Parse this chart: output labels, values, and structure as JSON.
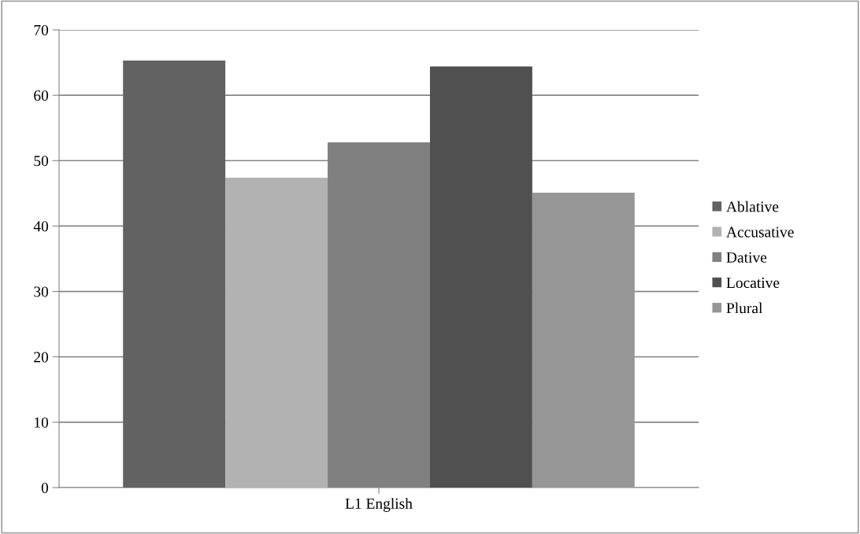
{
  "chart_data": {
    "type": "bar",
    "categories": [
      "L1 English"
    ],
    "series": [
      {
        "name": "Ablative",
        "color": "#626262",
        "values": [
          65.3
        ]
      },
      {
        "name": "Accusative",
        "color": "#b2b2b2",
        "values": [
          47.4
        ]
      },
      {
        "name": "Dative",
        "color": "#808080",
        "values": [
          52.8
        ]
      },
      {
        "name": "Locative",
        "color": "#505050",
        "values": [
          64.4
        ]
      },
      {
        "name": "Plural",
        "color": "#969696",
        "values": [
          45.1
        ]
      }
    ],
    "ylim": [
      0,
      70
    ],
    "yticks": [
      0,
      10,
      20,
      30,
      40,
      50,
      60,
      70
    ],
    "grid": "y",
    "legend": "right"
  }
}
